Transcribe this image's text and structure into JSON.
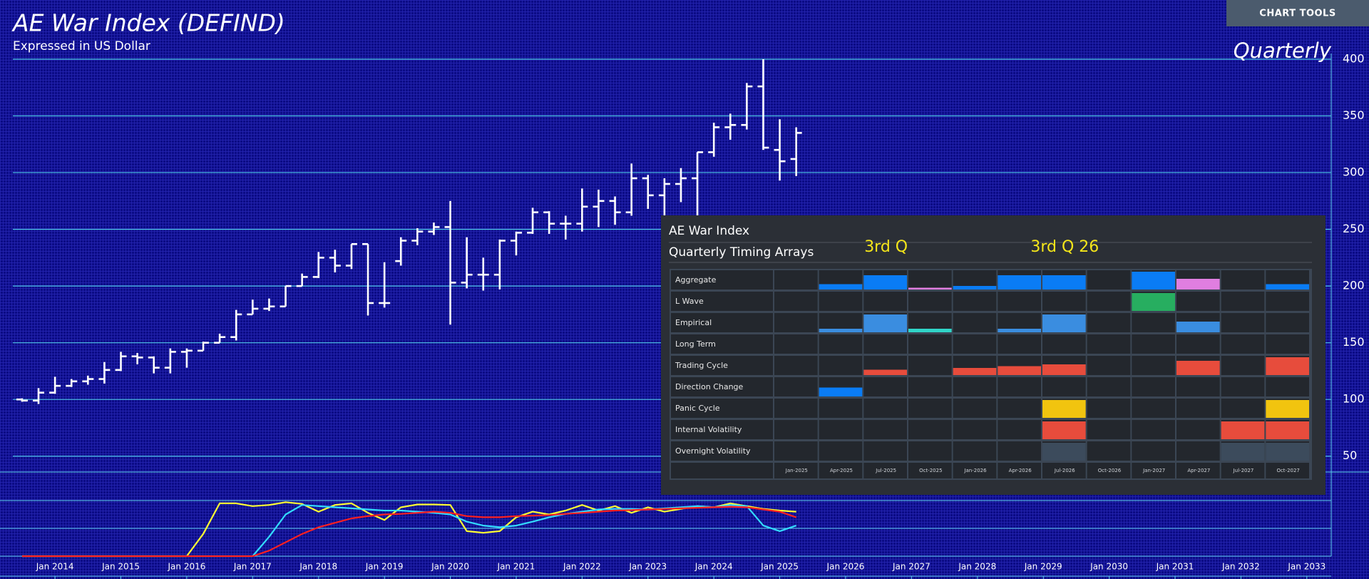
{
  "chart_data": [
    {
      "type": "ohlc",
      "title": "AE War Index (DEFIND)",
      "subtitle": "Expressed in US Dollar",
      "annotation": "Quarterly",
      "x": [
        2013.5,
        2013.75,
        2014,
        2014.25,
        2014.5,
        2014.75,
        2015,
        2015.25,
        2015.5,
        2015.75,
        2016,
        2016.25,
        2016.5,
        2016.75,
        2017,
        2017.25,
        2017.5,
        2017.75,
        2018,
        2018.25,
        2018.5,
        2018.75,
        2019,
        2019.25,
        2019.5,
        2019.75,
        2020,
        2020.25,
        2020.5,
        2020.75,
        2021,
        2021.25,
        2021.5,
        2021.75,
        2022,
        2022.25,
        2022.5,
        2022.75,
        2023,
        2023.25,
        2023.5,
        2023.75,
        2024,
        2024.25,
        2024.5,
        2024.75,
        2025,
        2025.25
      ],
      "open": [
        100,
        99,
        106,
        112,
        116,
        118,
        126,
        138,
        137,
        128,
        142,
        143,
        150,
        155,
        175,
        180,
        182,
        200,
        208,
        225,
        218,
        237,
        185,
        222,
        240,
        248,
        252,
        203,
        210,
        210,
        240,
        247,
        265,
        255,
        255,
        270,
        275,
        265,
        295,
        280,
        290,
        295,
        318,
        340,
        342,
        376,
        320,
        312
      ],
      "high": [
        101,
        110,
        120,
        118,
        121,
        133,
        142,
        141,
        138,
        145,
        145,
        151,
        158,
        179,
        188,
        189,
        200,
        211,
        230,
        232,
        237,
        237,
        221,
        243,
        251,
        256,
        275,
        243,
        225,
        241,
        248,
        269,
        266,
        262,
        286,
        285,
        279,
        308,
        298,
        295,
        304,
        318,
        344,
        352,
        379,
        400,
        347,
        340
      ],
      "low": [
        98,
        96,
        105,
        111,
        113,
        114,
        125,
        131,
        123,
        123,
        128,
        143,
        150,
        152,
        175,
        178,
        182,
        200,
        207,
        212,
        215,
        174,
        181,
        218,
        236,
        245,
        166,
        198,
        196,
        197,
        227,
        246,
        246,
        241,
        248,
        252,
        254,
        262,
        268,
        260,
        274,
        254,
        314,
        329,
        338,
        320,
        293,
        297
      ],
      "close": [
        99,
        106,
        112,
        116,
        118,
        126,
        138,
        137,
        128,
        142,
        143,
        150,
        155,
        175,
        180,
        182,
        200,
        208,
        225,
        218,
        237,
        185,
        185,
        240,
        248,
        252,
        203,
        210,
        210,
        240,
        247,
        265,
        255,
        255,
        270,
        275,
        265,
        295,
        280,
        290,
        295,
        318,
        340,
        342,
        376,
        322,
        310,
        335
      ],
      "color": "#ffffff",
      "xlim": [
        2013.36,
        2033.37
      ],
      "ylim": [
        36,
        400
      ],
      "yticks": [
        50,
        100,
        150,
        200,
        250,
        300,
        350,
        400
      ],
      "grid": true
    },
    {
      "type": "line",
      "x": [
        2013.5,
        2013.75,
        2014,
        2014.25,
        2014.5,
        2014.75,
        2015,
        2015.25,
        2015.5,
        2015.75,
        2016,
        2016.25,
        2016.5,
        2016.75,
        2017,
        2017.25,
        2017.5,
        2017.75,
        2018,
        2018.25,
        2018.5,
        2018.75,
        2019,
        2019.25,
        2019.5,
        2019.75,
        2020,
        2020.25,
        2020.5,
        2020.75,
        2021,
        2021.25,
        2021.5,
        2021.75,
        2022,
        2022.25,
        2022.5,
        2022.75,
        2023,
        2023.25,
        2023.5,
        2023.75,
        2024,
        2024.25,
        2024.5,
        2024.75,
        2025,
        2025.25
      ],
      "series": [
        {
          "color": "#ffff33",
          "values": [
            0,
            0,
            0,
            0,
            0,
            0,
            0,
            0,
            0,
            0,
            0,
            40,
            95,
            95,
            90,
            92,
            97,
            94,
            80,
            92,
            95,
            78,
            65,
            88,
            93,
            93,
            92,
            45,
            42,
            45,
            70,
            80,
            75,
            82,
            92,
            82,
            90,
            78,
            88,
            80,
            85,
            90,
            88,
            95,
            90,
            85,
            82,
            80
          ]
        },
        {
          "color": "#33ddff",
          "values": [
            0,
            0,
            0,
            0,
            0,
            0,
            0,
            0,
            0,
            0,
            0,
            0,
            0,
            0,
            0,
            35,
            75,
            92,
            90,
            88,
            86,
            84,
            82,
            82,
            80,
            78,
            75,
            62,
            55,
            52,
            55,
            62,
            70,
            76,
            80,
            84,
            85,
            85,
            84,
            86,
            88,
            90,
            88,
            92,
            90,
            55,
            45,
            55
          ]
        },
        {
          "color": "#ff2020",
          "values": [
            0,
            0,
            0,
            0,
            0,
            0,
            0,
            0,
            0,
            0,
            0,
            0,
            0,
            0,
            0,
            10,
            25,
            40,
            52,
            60,
            68,
            72,
            75,
            76,
            78,
            80,
            78,
            72,
            70,
            70,
            72,
            73,
            74,
            76,
            78,
            80,
            82,
            83,
            84,
            85,
            86,
            87,
            88,
            89,
            88,
            84,
            80,
            70
          ]
        }
      ],
      "xlim": [
        2013.36,
        2033.37
      ],
      "ylim": [
        0,
        100
      ],
      "xticks": [
        {
          "value": 2014,
          "label": "Jan 2014"
        },
        {
          "value": 2015,
          "label": "Jan 2015"
        },
        {
          "value": 2016,
          "label": "Jan 2016"
        },
        {
          "value": 2017,
          "label": "Jan 2017"
        },
        {
          "value": 2018,
          "label": "Jan 2018"
        },
        {
          "value": 2019,
          "label": "Jan 2019"
        },
        {
          "value": 2020,
          "label": "Jan 2020"
        },
        {
          "value": 2021,
          "label": "Jan 2021"
        },
        {
          "value": 2022,
          "label": "Jan 2022"
        },
        {
          "value": 2023,
          "label": "Jan 2023"
        },
        {
          "value": 2024,
          "label": "Jan 2024"
        },
        {
          "value": 2025,
          "label": "Jan 2025"
        },
        {
          "value": 2026,
          "label": "Jan 2026"
        },
        {
          "value": 2027,
          "label": "Jan 2027"
        },
        {
          "value": 2028,
          "label": "Jan 2028"
        },
        {
          "value": 2029,
          "label": "Jan 2029"
        },
        {
          "value": 2030,
          "label": "Jan 2030"
        },
        {
          "value": 2031,
          "label": "Jan 2031"
        },
        {
          "value": 2032,
          "label": "Jan 2032"
        },
        {
          "value": 2033,
          "label": "Jan 2033"
        }
      ]
    }
  ],
  "toolbar": {
    "button": "CHART TOOLS"
  },
  "timing_arrays": {
    "title": "AE War Index",
    "subtitle": "Quarterly Timing Arrays",
    "annotations": [
      {
        "text": "3rd Q",
        "column": 2
      },
      {
        "text": "3rd Q 26",
        "column": 6
      }
    ],
    "max": 10,
    "columns": [
      "Jan-2025",
      "Apr-2025",
      "Jul-2025",
      "Oct-2025",
      "Jan-2026",
      "Apr-2026",
      "Jul-2026",
      "Oct-2026",
      "Jan-2027",
      "Apr-2027",
      "Jul-2027",
      "Oct-2027"
    ],
    "rows": [
      {
        "name": "Aggregate",
        "values": [
          null,
          3,
          8,
          1,
          2,
          8,
          8,
          null,
          10,
          6,
          null,
          3
        ],
        "colors": [
          null,
          "#0a7cf5",
          "#0a7cf5",
          "#e07ee0",
          "#0a7cf5",
          "#0a7cf5",
          "#0a7cf5",
          null,
          "#0a7cf5",
          "#e07ee0",
          null,
          "#0a7cf5"
        ]
      },
      {
        "name": "L Wave",
        "values": [
          null,
          null,
          null,
          null,
          null,
          null,
          null,
          null,
          10,
          null,
          null,
          null
        ],
        "colors": [
          null,
          null,
          null,
          null,
          null,
          null,
          null,
          null,
          "#27ae60",
          null,
          null,
          null
        ]
      },
      {
        "name": "Empirical",
        "values": [
          null,
          2,
          10,
          2,
          null,
          2,
          10,
          null,
          null,
          6,
          null,
          null
        ],
        "colors": [
          null,
          "#3a8de0",
          "#3a8de0",
          "#30d5c8",
          null,
          "#3a8de0",
          "#3a8de0",
          null,
          null,
          "#3a8de0",
          null,
          null
        ]
      },
      {
        "name": "Long Term",
        "values": [
          null,
          null,
          null,
          null,
          null,
          null,
          null,
          null,
          null,
          null,
          null,
          null
        ],
        "colors": [
          null,
          null,
          null,
          null,
          null,
          null,
          null,
          null,
          null,
          null,
          null,
          null
        ]
      },
      {
        "name": "Trading Cycle",
        "values": [
          null,
          null,
          3,
          null,
          4,
          5,
          6,
          null,
          null,
          8,
          null,
          10
        ],
        "colors": [
          null,
          null,
          "#e74c3c",
          null,
          "#e74c3c",
          "#e74c3c",
          "#e74c3c",
          null,
          null,
          "#e74c3c",
          null,
          "#e74c3c"
        ]
      },
      {
        "name": "Direction Change",
        "values": [
          null,
          5,
          null,
          null,
          null,
          null,
          null,
          null,
          null,
          null,
          null,
          null
        ],
        "colors": [
          null,
          "#0a7cf5",
          null,
          null,
          null,
          null,
          null,
          null,
          null,
          null,
          null,
          null
        ]
      },
      {
        "name": "Panic Cycle",
        "values": [
          null,
          null,
          null,
          null,
          null,
          null,
          10,
          null,
          null,
          null,
          null,
          10
        ],
        "colors": [
          null,
          null,
          null,
          null,
          null,
          null,
          "#f1c40f",
          null,
          null,
          null,
          null,
          "#f1c40f"
        ]
      },
      {
        "name": "Internal Volatility",
        "values": [
          null,
          null,
          null,
          null,
          null,
          null,
          10,
          null,
          null,
          null,
          10,
          10
        ],
        "colors": [
          null,
          null,
          null,
          null,
          null,
          null,
          "#e74c3c",
          null,
          null,
          null,
          "#e74c3c",
          "#e74c3c"
        ]
      },
      {
        "name": "Overnight Volatility",
        "values": [
          null,
          null,
          null,
          null,
          null,
          null,
          10,
          null,
          null,
          null,
          10,
          10
        ],
        "colors": [
          null,
          null,
          null,
          null,
          null,
          null,
          "#3c4b5c",
          null,
          null,
          null,
          "#3c4b5c",
          "#3c4b5c"
        ]
      }
    ]
  }
}
